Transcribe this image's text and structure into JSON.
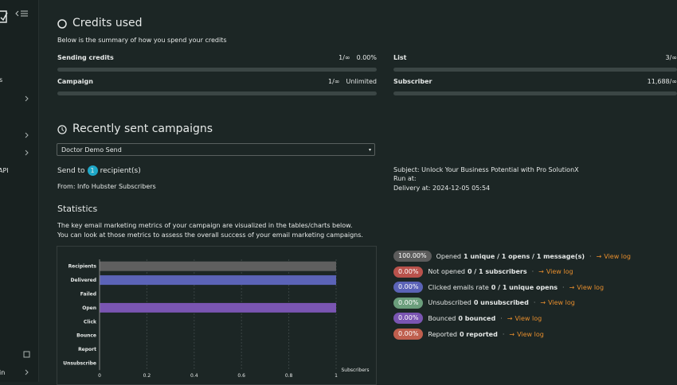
{
  "sidebar": {
    "items": [
      "s",
      "API",
      "in"
    ]
  },
  "credits": {
    "title": "Credits used",
    "subtitle": "Below is the summary of how you spend your credits",
    "items": [
      {
        "label": "Sending credits",
        "usage": "1/∞",
        "value": "0.00%"
      },
      {
        "label": "Campaign",
        "usage": "1/∞",
        "value": "Unlimited"
      },
      {
        "label": "List",
        "usage": "3/∞"
      },
      {
        "label": "Subscriber",
        "usage": "11,688/∞"
      }
    ]
  },
  "campaigns": {
    "title": "Recently sent campaigns",
    "selected": "Doctor Demo Send",
    "send_to": "Send to",
    "recipients": "1",
    "recipients_suffix": "recipient(s)",
    "from": "From: Info Hubster Subscribers",
    "subject": "Subject: Unlock Your Business Potential with Pro SolutionX",
    "run_at": "Run at:",
    "delivery_at": "Delivery at: 2024-12-05 05:54"
  },
  "statistics": {
    "title": "Statistics",
    "description": [
      "The key email marketing metrics of your campaign are visualized in the tables/charts below.",
      "You can look at those metrics to assess the overall success of your email marketing campaigns."
    ],
    "metrics": [
      {
        "badge": "100.00%",
        "color": "#5c5c5c",
        "label": "Opened",
        "detail": "1 unique / 1 opens / 1 message(s)",
        "link": "View log"
      },
      {
        "badge": "0.00%",
        "color": "#b9524c",
        "label": "Not opened",
        "detail": "0 / 1 subscribers",
        "link": "View log"
      },
      {
        "badge": "0.00%",
        "color": "#5b63b7",
        "label": "Clicked emails rate",
        "detail": "0 / 1 unique opens",
        "link": "View log"
      },
      {
        "badge": "0.00%",
        "color": "#6b9e7c",
        "label": "Unsubscribed",
        "detail": "0 unsubscribed",
        "link": "View log"
      },
      {
        "badge": "0.00%",
        "color": "#7a55b2",
        "label": "Bounced",
        "detail": "0 bounced",
        "link": "View log"
      },
      {
        "badge": "0.00%",
        "color": "#bf5f4e",
        "label": "Reported",
        "detail": "0 reported",
        "link": "View log"
      }
    ]
  },
  "chart_data": {
    "type": "barh",
    "x_label": "Subscribers",
    "categories": [
      "Recipients",
      "Delivered",
      "Failed",
      "Open",
      "Click",
      "Bounce",
      "Report",
      "Unsubscribe"
    ],
    "values": [
      1,
      1,
      0,
      1,
      0,
      0,
      0,
      0
    ],
    "colors": [
      "#5f5f5f",
      "#5b63b7",
      "#b9524c",
      "#7a55b2",
      "#5b63b7",
      "#7a55b2",
      "#bf5f4e",
      "#6b9e7c"
    ],
    "xlim": [
      0,
      1
    ],
    "xticks": [
      0,
      0.2,
      0.4,
      0.6,
      0.8,
      1
    ],
    "grid": true
  }
}
